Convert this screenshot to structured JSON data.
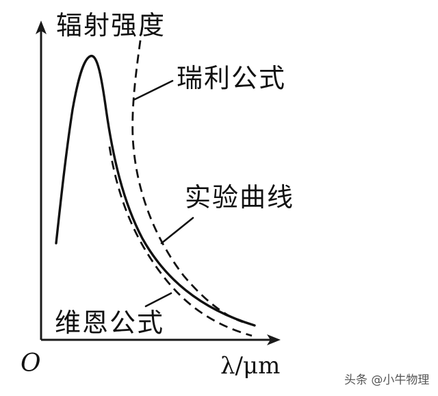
{
  "axes": {
    "y_label": "辐射强度",
    "x_label": "λ/μm",
    "origin_label": "O"
  },
  "curves": [
    {
      "name": "瑞利公式",
      "style": "dashed"
    },
    {
      "name": "实验曲线",
      "style": "solid"
    },
    {
      "name": "维恩公式",
      "style": "dashed"
    }
  ],
  "watermark": "头条 @小牛物理"
}
